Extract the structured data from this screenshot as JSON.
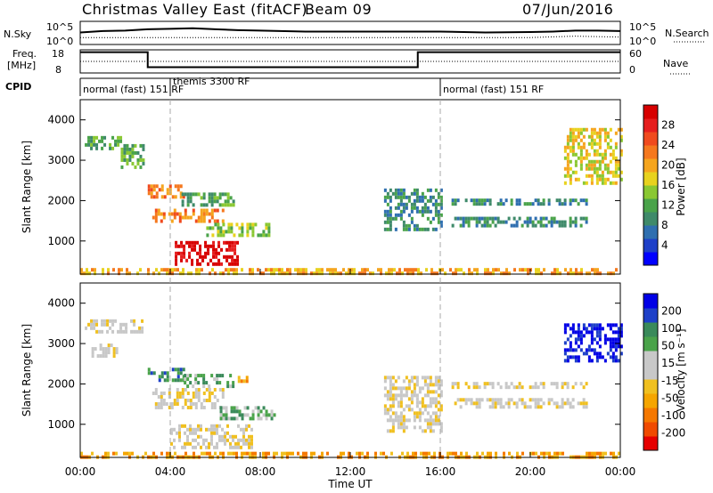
{
  "header": {
    "station": "Christmas Valley East (fitACF)",
    "beam": "Beam 09",
    "date": "07/Jun/2016"
  },
  "strip_labels": {
    "nsky": "N.Sky",
    "nsearch": "N.Search",
    "freq_line1": "Freq.",
    "freq_line2": "[MHz]",
    "nave": "Nave",
    "cpid": "CPID"
  },
  "cpid_segments": [
    {
      "label": "normal (fast) 151 RF",
      "start_hour": 0
    },
    {
      "label": "themis 3300 RF",
      "start_hour": 4
    },
    {
      "label": "normal (fast) 151 RF",
      "start_hour": 16
    }
  ],
  "colorbars": {
    "power": {
      "label": "Power [dB]",
      "ticks": [
        "4",
        "8",
        "12",
        "16",
        "20",
        "24",
        "28"
      ],
      "colors": [
        "#0000ff",
        "#1e40c8",
        "#2f6fb0",
        "#3f8a6a",
        "#4aa34a",
        "#8ac832",
        "#e8d21e",
        "#f5a51e",
        "#f5781e",
        "#f04a1e",
        "#e61e1e",
        "#d70000"
      ]
    },
    "velocity": {
      "label": "Velocity [m s⁻¹]",
      "ticks": [
        "-200",
        "-100",
        "-50",
        "-15",
        "15",
        "50",
        "100",
        "200"
      ],
      "colors": [
        "#e60000",
        "#f04a00",
        "#f57800",
        "#f5a500",
        "#f0c020",
        "#c8c8c8",
        "#c8c8c8",
        "#4aa34a",
        "#3a8a5a",
        "#1e40c8",
        "#0000e6"
      ]
    }
  },
  "chart_data": [
    {
      "type": "line",
      "name": "n-sky-search",
      "y_left_ticks": [
        "10^5",
        "10^0"
      ],
      "y_right_ticks": [
        "10^5",
        "10^0"
      ],
      "series": [
        {
          "name": "N.Sky",
          "x": [
            0,
            1,
            2,
            3,
            4,
            5,
            6,
            7,
            8,
            10,
            12,
            14,
            16,
            18,
            20,
            21,
            22,
            23,
            24
          ],
          "y": [
            2.6,
            2.9,
            3.0,
            3.3,
            3.4,
            3.5,
            3.3,
            3.1,
            3.0,
            2.8,
            2.8,
            2.8,
            2.8,
            2.6,
            2.7,
            2.8,
            3.0,
            3.0,
            2.9
          ]
        },
        {
          "name": "N.Search",
          "x": [
            0,
            4,
            8,
            12,
            16,
            20,
            22,
            24
          ],
          "y": [
            1.5,
            1.5,
            1.5,
            1.5,
            1.5,
            1.5,
            1.8,
            1.6
          ]
        }
      ]
    },
    {
      "type": "line",
      "name": "freq-nave",
      "y_left_ticks": [
        "18",
        "8"
      ],
      "y_right_ticks": [
        "60",
        "0"
      ],
      "series": [
        {
          "name": "Freq",
          "x": [
            0,
            3,
            3,
            15,
            15,
            24
          ],
          "y": [
            17,
            17,
            10.5,
            10.5,
            17,
            17
          ]
        },
        {
          "name": "Nave",
          "x": [
            0,
            24
          ],
          "y": [
            13,
            13
          ]
        }
      ]
    },
    {
      "type": "heatmap",
      "name": "power-panel",
      "ylabel": "Slant Range [km]",
      "ylim": [
        180,
        4500
      ],
      "yticks": [
        1000,
        2000,
        3000,
        4000
      ],
      "xlim": [
        0,
        24
      ],
      "regions": [
        {
          "x0": 0.2,
          "x1": 1.8,
          "y0": 3300,
          "y1": 3600,
          "level": 4
        },
        {
          "x0": 1.8,
          "x1": 2.8,
          "y0": 2800,
          "y1": 3400,
          "level": 4
        },
        {
          "x0": 3.0,
          "x1": 4.6,
          "y0": 2050,
          "y1": 2400,
          "level": 8
        },
        {
          "x0": 4.5,
          "x1": 6.8,
          "y0": 1900,
          "y1": 2200,
          "level": 4
        },
        {
          "x0": 3.2,
          "x1": 6.4,
          "y0": 1450,
          "y1": 1800,
          "level": 8
        },
        {
          "x0": 5.6,
          "x1": 8.4,
          "y0": 1150,
          "y1": 1450,
          "level": 5
        },
        {
          "x0": 4.2,
          "x1": 7.0,
          "y0": 400,
          "y1": 1000,
          "level": 11
        },
        {
          "x0": 0.0,
          "x1": 24.0,
          "y0": 180,
          "y1": 330,
          "level": 7
        },
        {
          "x0": 13.5,
          "x1": 16.0,
          "y0": 1300,
          "y1": 2300,
          "level": 3
        },
        {
          "x0": 16.5,
          "x1": 22.5,
          "y0": 1400,
          "y1": 1600,
          "level": 3
        },
        {
          "x0": 16.5,
          "x1": 22.5,
          "y0": 1900,
          "y1": 2050,
          "level": 3
        },
        {
          "x0": 21.5,
          "x1": 24.0,
          "y0": 2400,
          "y1": 3800,
          "level": 6
        }
      ]
    },
    {
      "type": "heatmap",
      "name": "velocity-panel",
      "ylabel": "Slant Range [km]",
      "ylim": [
        180,
        4500
      ],
      "yticks": [
        1000,
        2000,
        3000,
        4000
      ],
      "xlim": [
        0,
        24
      ],
      "xticks": [
        "00:00",
        "04:00",
        "08:00",
        "12:00",
        "16:00",
        "20:00",
        "00:00"
      ],
      "xlabel": "Time UT",
      "regions": [
        {
          "x0": 0.2,
          "x1": 2.8,
          "y0": 3300,
          "y1": 3600,
          "level": 5
        },
        {
          "x0": 0.5,
          "x1": 1.6,
          "y0": 2700,
          "y1": 3000,
          "level": 5
        },
        {
          "x0": 3.0,
          "x1": 4.6,
          "y0": 2050,
          "y1": 2400,
          "level": 8
        },
        {
          "x0": 4.6,
          "x1": 6.8,
          "y0": 1950,
          "y1": 2250,
          "level": 7
        },
        {
          "x0": 3.2,
          "x1": 6.4,
          "y0": 1400,
          "y1": 1900,
          "level": 5
        },
        {
          "x0": 6.2,
          "x1": 8.6,
          "y0": 1100,
          "y1": 1450,
          "level": 7
        },
        {
          "x0": 4.0,
          "x1": 7.6,
          "y0": 400,
          "y1": 1000,
          "level": 5
        },
        {
          "x0": 0.0,
          "x1": 24.0,
          "y0": 180,
          "y1": 320,
          "level": 3
        },
        {
          "x0": 13.5,
          "x1": 16.0,
          "y0": 800,
          "y1": 2200,
          "level": 5
        },
        {
          "x0": 16.5,
          "x1": 22.5,
          "y0": 1400,
          "y1": 1650,
          "level": 5
        },
        {
          "x0": 16.5,
          "x1": 22.5,
          "y0": 1900,
          "y1": 2050,
          "level": 5
        },
        {
          "x0": 21.5,
          "x1": 24.0,
          "y0": 2600,
          "y1": 3500,
          "level": 10
        },
        {
          "x0": 7.0,
          "x1": 7.4,
          "y0": 2050,
          "y1": 2200,
          "level": 3
        }
      ]
    }
  ]
}
